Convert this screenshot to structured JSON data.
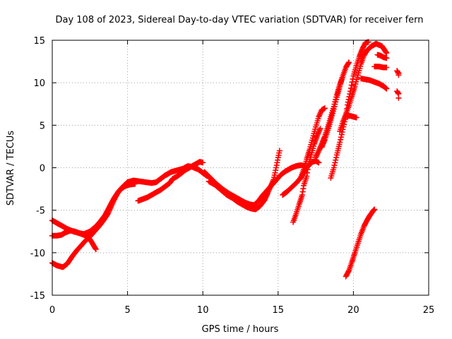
{
  "chart_data": {
    "type": "scatter",
    "title": "Day 108 of 2023, Sidereal Day-to-day VTEC variation (SDTVAR) for receiver fern",
    "xlabel": "GPS time / hours",
    "ylabel": "SDTVAR / TECUs",
    "xlim": [
      0,
      25
    ],
    "ylim": [
      -15,
      15
    ],
    "xticks": [
      0,
      5,
      10,
      15,
      20,
      25
    ],
    "yticks": [
      -15,
      -10,
      -5,
      0,
      5,
      10,
      15
    ],
    "grid": true,
    "marker": "plus",
    "color": "#ff0000",
    "series": [
      {
        "tracks": [
          [
            [
              0.0,
              -6.2
            ],
            [
              0.3,
              -6.5
            ],
            [
              0.6,
              -6.8
            ],
            [
              1.0,
              -7.2
            ],
            [
              1.4,
              -7.5
            ],
            [
              1.8,
              -7.7
            ],
            [
              2.1,
              -7.8
            ],
            [
              2.5,
              -7.5
            ],
            [
              2.9,
              -6.9
            ],
            [
              3.2,
              -6.3
            ],
            [
              3.5,
              -5.6
            ],
            [
              3.8,
              -4.6
            ],
            [
              4.1,
              -3.6
            ],
            [
              4.4,
              -2.8
            ],
            [
              4.7,
              -2.2
            ],
            [
              5.0,
              -1.7
            ],
            [
              5.4,
              -1.5
            ],
            [
              5.8,
              -1.6
            ],
            [
              6.2,
              -1.7
            ],
            [
              6.6,
              -1.8
            ],
            [
              6.9,
              -1.7
            ],
            [
              7.2,
              -1.3
            ],
            [
              7.5,
              -0.9
            ],
            [
              7.9,
              -0.5
            ],
            [
              8.3,
              -0.3
            ],
            [
              8.7,
              -0.1
            ],
            [
              9.0,
              0.2
            ],
            [
              9.3,
              0.1
            ],
            [
              9.7,
              -0.2
            ],
            [
              10.0,
              -0.6
            ],
            [
              10.3,
              -1.0
            ]
          ],
          [
            [
              0.0,
              -11.2
            ],
            [
              0.3,
              -11.5
            ],
            [
              0.7,
              -11.7
            ],
            [
              1.0,
              -11.3
            ],
            [
              1.3,
              -10.5
            ],
            [
              1.6,
              -9.8
            ],
            [
              1.9,
              -9.2
            ],
            [
              2.2,
              -8.6
            ],
            [
              2.5,
              -8.1
            ],
            [
              2.8,
              -7.5
            ],
            [
              3.1,
              -6.9
            ],
            [
              3.4,
              -6.2
            ],
            [
              3.7,
              -5.4
            ],
            [
              3.9,
              -4.6
            ],
            [
              4.1,
              -3.8
            ],
            [
              4.3,
              -3.1
            ],
            [
              4.5,
              -2.6
            ],
            [
              4.8,
              -2.2
            ],
            [
              5.1,
              -2.0
            ],
            [
              5.5,
              -1.9
            ]
          ],
          [
            [
              0.0,
              -8.0
            ],
            [
              0.3,
              -8.0
            ],
            [
              0.6,
              -7.9
            ],
            [
              0.9,
              -7.6
            ],
            [
              1.2,
              -7.4
            ],
            [
              1.5,
              -7.5
            ],
            [
              1.8,
              -7.7
            ],
            [
              2.1,
              -7.9
            ],
            [
              2.4,
              -8.2
            ],
            [
              2.6,
              -8.7
            ],
            [
              2.8,
              -9.3
            ],
            [
              2.9,
              -9.6
            ]
          ],
          [
            [
              5.7,
              -3.9
            ],
            [
              6.0,
              -3.7
            ],
            [
              6.3,
              -3.5
            ],
            [
              6.6,
              -3.2
            ],
            [
              6.9,
              -2.9
            ],
            [
              7.2,
              -2.6
            ],
            [
              7.5,
              -2.2
            ],
            [
              7.8,
              -1.8
            ],
            [
              8.0,
              -1.3
            ],
            [
              8.3,
              -1.0
            ],
            [
              8.6,
              -0.6
            ],
            [
              8.8,
              -0.3
            ],
            [
              9.1,
              0.0
            ],
            [
              9.4,
              0.3
            ],
            [
              9.6,
              0.5
            ],
            [
              9.8,
              0.7
            ],
            [
              10.0,
              0.6
            ]
          ],
          [
            [
              10.1,
              -0.5
            ],
            [
              10.5,
              -1.2
            ],
            [
              10.9,
              -1.9
            ],
            [
              11.3,
              -2.5
            ],
            [
              11.7,
              -3.0
            ],
            [
              12.1,
              -3.4
            ],
            [
              12.5,
              -3.8
            ],
            [
              12.8,
              -4.1
            ],
            [
              13.1,
              -4.3
            ],
            [
              13.4,
              -4.4
            ],
            [
              13.7,
              -3.9
            ],
            [
              14.0,
              -3.2
            ],
            [
              14.3,
              -2.6
            ],
            [
              14.6,
              -2.0
            ],
            [
              14.9,
              -1.4
            ],
            [
              15.2,
              -0.8
            ],
            [
              15.5,
              -0.4
            ],
            [
              15.9,
              0.0
            ],
            [
              16.2,
              0.2
            ],
            [
              16.5,
              0.3
            ],
            [
              16.8,
              0.2
            ]
          ],
          [
            [
              10.4,
              -1.6
            ],
            [
              10.8,
              -2.0
            ],
            [
              11.2,
              -2.6
            ],
            [
              11.6,
              -3.2
            ],
            [
              12.0,
              -3.6
            ],
            [
              12.3,
              -4.0
            ],
            [
              12.6,
              -4.3
            ],
            [
              12.9,
              -4.6
            ],
            [
              13.2,
              -4.8
            ],
            [
              13.5,
              -4.9
            ],
            [
              13.8,
              -4.5
            ],
            [
              14.1,
              -3.8
            ],
            [
              14.3,
              -3.0
            ],
            [
              14.5,
              -2.2
            ],
            [
              14.7,
              -1.4
            ],
            [
              14.8,
              -0.6
            ],
            [
              14.9,
              0.3
            ],
            [
              15.0,
              1.2
            ],
            [
              15.1,
              2.0
            ]
          ],
          [
            [
              15.3,
              -3.2
            ],
            [
              15.6,
              -2.8
            ],
            [
              15.9,
              -2.3
            ],
            [
              16.2,
              -1.8
            ],
            [
              16.5,
              -1.2
            ],
            [
              16.7,
              -0.6
            ],
            [
              16.9,
              0.0
            ],
            [
              17.1,
              0.4
            ],
            [
              17.3,
              0.7
            ],
            [
              17.5,
              0.8
            ],
            [
              17.7,
              0.6
            ]
          ],
          [
            [
              16.0,
              -6.4
            ],
            [
              16.2,
              -5.4
            ],
            [
              16.4,
              -4.3
            ],
            [
              16.6,
              -3.2
            ],
            [
              16.7,
              -2.1
            ],
            [
              16.9,
              -1.0
            ],
            [
              17.0,
              0.2
            ],
            [
              17.2,
              1.5
            ],
            [
              17.4,
              2.8
            ],
            [
              17.6,
              3.8
            ],
            [
              17.8,
              4.6
            ]
          ],
          [
            [
              16.5,
              -1.2
            ],
            [
              16.7,
              -0.2
            ],
            [
              16.9,
              1.0
            ],
            [
              17.1,
              2.2
            ],
            [
              17.3,
              3.5
            ],
            [
              17.5,
              4.8
            ],
            [
              17.7,
              6.0
            ],
            [
              17.9,
              6.8
            ],
            [
              18.1,
              7.0
            ]
          ],
          [
            [
              17.5,
              1.2
            ],
            [
              17.7,
              2.0
            ],
            [
              17.9,
              2.8
            ],
            [
              18.1,
              3.7
            ],
            [
              18.3,
              4.8
            ],
            [
              18.5,
              6.0
            ],
            [
              18.7,
              7.2
            ],
            [
              18.9,
              8.6
            ],
            [
              19.1,
              9.8
            ],
            [
              19.3,
              10.8
            ]
          ],
          [
            [
              17.9,
              2.4
            ],
            [
              18.1,
              3.3
            ],
            [
              18.3,
              4.4
            ],
            [
              18.5,
              5.6
            ],
            [
              18.7,
              6.9
            ],
            [
              18.9,
              8.3
            ],
            [
              19.1,
              9.6
            ],
            [
              19.3,
              10.8
            ],
            [
              19.5,
              11.8
            ],
            [
              19.7,
              12.4
            ]
          ],
          [
            [
              18.5,
              -1.2
            ],
            [
              18.7,
              0.0
            ],
            [
              18.9,
              1.5
            ],
            [
              19.1,
              3.0
            ],
            [
              19.3,
              4.5
            ],
            [
              19.5,
              6.0
            ],
            [
              19.6,
              7.4
            ],
            [
              19.8,
              9.0
            ],
            [
              20.0,
              10.8
            ],
            [
              20.2,
              12.0
            ],
            [
              20.4,
              13.1
            ],
            [
              20.6,
              14.0
            ],
            [
              20.8,
              14.7
            ],
            [
              21.0,
              14.8
            ]
          ],
          [
            [
              19.1,
              4.3
            ],
            [
              19.3,
              5.4
            ],
            [
              19.5,
              6.3
            ],
            [
              19.7,
              7.3
            ],
            [
              19.9,
              8.4
            ],
            [
              20.1,
              9.6
            ],
            [
              20.3,
              10.9
            ],
            [
              20.5,
              12.2
            ],
            [
              20.7,
              13.2
            ],
            [
              20.9,
              13.8
            ],
            [
              21.2,
              14.3
            ],
            [
              21.5,
              14.6
            ],
            [
              21.9,
              14.3
            ],
            [
              22.2,
              13.5
            ]
          ],
          [
            [
              19.5,
              -12.8
            ],
            [
              19.7,
              -12.1
            ],
            [
              19.9,
              -11.1
            ],
            [
              20.1,
              -10.0
            ],
            [
              20.3,
              -8.9
            ],
            [
              20.5,
              -7.8
            ],
            [
              20.7,
              -6.9
            ],
            [
              20.9,
              -6.2
            ],
            [
              21.1,
              -5.6
            ],
            [
              21.3,
              -5.1
            ],
            [
              21.4,
              -4.9
            ]
          ],
          [
            [
              19.6,
              6.1
            ],
            [
              19.8,
              6.1
            ],
            [
              20.0,
              6.0
            ],
            [
              20.2,
              5.9
            ]
          ],
          [
            [
              20.5,
              10.5
            ],
            [
              20.8,
              10.4
            ],
            [
              21.1,
              10.3
            ],
            [
              21.4,
              10.1
            ],
            [
              21.7,
              9.9
            ],
            [
              22.0,
              9.6
            ],
            [
              22.2,
              9.3
            ]
          ],
          [
            [
              21.4,
              11.9
            ],
            [
              21.7,
              11.9
            ],
            [
              22.0,
              11.8
            ],
            [
              22.2,
              11.8
            ]
          ],
          [
            [
              21.6,
              13.3
            ],
            [
              21.8,
              13.2
            ],
            [
              22.0,
              13.0
            ],
            [
              22.2,
              12.9
            ]
          ],
          [
            [
              22.9,
              11.4
            ],
            [
              23.0,
              11.1
            ],
            [
              23.0,
              10.9
            ]
          ],
          [
            [
              22.9,
              9.0
            ],
            [
              23.0,
              8.7
            ],
            [
              23.0,
              8.2
            ]
          ]
        ]
      }
    ]
  }
}
